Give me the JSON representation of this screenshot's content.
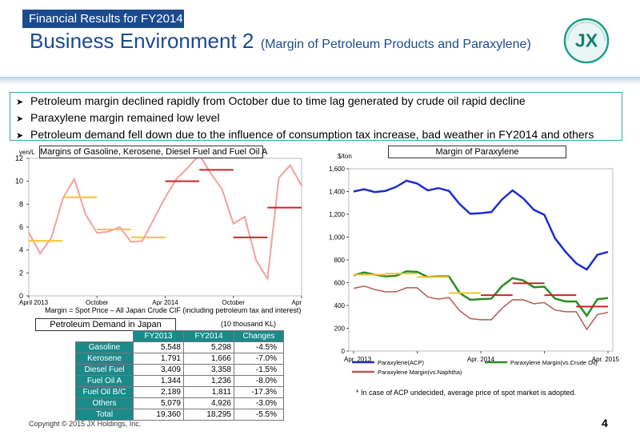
{
  "header": {
    "tag": "Financial Results for FY2014",
    "title": "Business Environment 2",
    "subtitle": "(Margin of Petroleum Products and Paraxylene)",
    "logo_text": "JX"
  },
  "bullets": [
    "Petroleum margin declined rapidly from October due to time lag generated by crude oil rapid decline",
    "Paraxylene margin remained low level",
    "Petroleum demand fell down due to the influence of consumption tax increase, bad weather in FY2014 and others"
  ],
  "colors": {
    "navy": "#1b4b8f",
    "teal": "#1a8a8a",
    "pink": "#f2a0a0",
    "yellow": "#f7c42a",
    "red": "#d2202a",
    "blue": "#1d2ec8",
    "green": "#2e8b22",
    "brown": "#b25b52"
  },
  "chart_data": [
    {
      "type": "line",
      "title": "Margins of Gasoline, Kerosene, Diesel Fuel and Fuel Oil A",
      "ylabel": "yen/L",
      "ylim": [
        0,
        12
      ],
      "yticks": [
        "0",
        "2",
        "4",
        "6",
        "8",
        "10",
        "12"
      ],
      "xticks": [
        {
          "label": "April 2013",
          "month": 0
        },
        {
          "label": "October",
          "month": 6
        },
        {
          "label": "Apr 2014",
          "month": 12
        },
        {
          "label": "October",
          "month": 18
        },
        {
          "label": "Apr",
          "month": 24
        }
      ],
      "series": [
        {
          "values": [
            5.5,
            3.7,
            5.1,
            8.5,
            10.2,
            7.1,
            5.5,
            5.6,
            6.0,
            4.7,
            4.8,
            6.7,
            8.6,
            10.2,
            11.2,
            12.3,
            10.7,
            9.3,
            6.3,
            6.9,
            3.1,
            1.5,
            10.3,
            11.4,
            9.6
          ]
        },
        {
          "segments": [
            {
              "start": 0,
              "end": 3,
              "value": 4.8
            },
            {
              "start": 3,
              "end": 6,
              "value": 8.6
            },
            {
              "start": 6,
              "end": 9,
              "value": 5.8
            },
            {
              "start": 9,
              "end": 12,
              "value": 5.1
            }
          ]
        },
        {
          "segments": [
            {
              "start": 12,
              "end": 15,
              "value": 10.0
            },
            {
              "start": 15,
              "end": 18,
              "value": 11.0
            },
            {
              "start": 18,
              "end": 21,
              "value": 5.1
            },
            {
              "start": 21,
              "end": 24,
              "value": 7.7
            }
          ]
        }
      ]
    },
    {
      "type": "line",
      "title": "Margin of Paraxylene",
      "ylabel": "$/ton",
      "ylim": [
        0,
        1600
      ],
      "yticks": [
        "0",
        "200",
        "400",
        "600",
        "800",
        "1,000",
        "1,200",
        "1,400",
        "1,600"
      ],
      "xticks": [
        {
          "label": "Apr. 2013",
          "month": 0
        },
        {
          "label": "Apr. 2014",
          "month": 12
        },
        {
          "label": "Apr. 2015",
          "month": 24
        }
      ],
      "series": [
        {
          "name": "Paraxylene(ACP)",
          "values": [
            1400,
            1420,
            1395,
            1405,
            1440,
            1495,
            1470,
            1410,
            1430,
            1405,
            1290,
            1205,
            1210,
            1220,
            1330,
            1410,
            1340,
            1240,
            1195,
            990,
            870,
            770,
            715,
            845,
            870
          ]
        },
        {
          "name": "Paraxylene Margin(vs.Crude Oil)",
          "values": [
            665,
            690,
            670,
            655,
            660,
            700,
            695,
            650,
            655,
            655,
            510,
            450,
            455,
            460,
            570,
            640,
            620,
            560,
            565,
            460,
            435,
            435,
            310,
            455,
            465
          ]
        },
        {
          "name": "Paraxylene Margin(vs.Naphtha)",
          "values": [
            550,
            570,
            540,
            520,
            520,
            555,
            555,
            475,
            455,
            470,
            355,
            285,
            275,
            275,
            375,
            450,
            450,
            415,
            425,
            360,
            345,
            345,
            190,
            320,
            340
          ]
        },
        {
          "segments": [
            {
              "start": 0,
              "end": 3,
              "value": 670
            },
            {
              "start": 3,
              "end": 6,
              "value": 680
            },
            {
              "start": 6,
              "end": 9,
              "value": 650
            },
            {
              "start": 9,
              "end": 12,
              "value": 510
            }
          ]
        },
        {
          "segments": [
            {
              "start": 12,
              "end": 15,
              "value": 490
            },
            {
              "start": 15,
              "end": 18,
              "value": 595
            },
            {
              "start": 18,
              "end": 21,
              "value": 490
            },
            {
              "start": 21,
              "end": 24,
              "value": 390
            }
          ]
        }
      ]
    }
  ],
  "margin_note": "Margin = Spot Price – All Japan Crude CIF (including petroleum tax and interest)",
  "demand": {
    "title": "Petroleum Demand in Japan",
    "unit": "(10 thousand KL)",
    "columns": [
      "FY2013",
      "FY2014",
      "Changes"
    ],
    "rows": [
      {
        "label": "Gasoline",
        "fy2013": "5,548",
        "fy2014": "5,298",
        "change": "-4.5%"
      },
      {
        "label": "Kerosene",
        "fy2013": "1,791",
        "fy2014": "1,666",
        "change": "-7.0%"
      },
      {
        "label": "Diesel Fuel",
        "fy2013": "3,409",
        "fy2014": "3,358",
        "change": "-1.5%"
      },
      {
        "label": "Fuel Oil A",
        "fy2013": "1,344",
        "fy2014": "1,236",
        "change": "-8.0%"
      },
      {
        "label": "Fuel Oil B/C",
        "fy2013": "2,189",
        "fy2014": "1,811",
        "change": "-17.3%"
      },
      {
        "label": "Others",
        "fy2013": "5,079",
        "fy2014": "4,926",
        "change": "-3.0%"
      },
      {
        "label": "Total",
        "fy2013": "19,360",
        "fy2014": "18,295",
        "change": "-5.5%"
      }
    ]
  },
  "acp_note": "* In case of ACP undecided, average price of spot market is adopted.",
  "footer": {
    "copyright": "Copyright © 2015 JX Holdings, Inc.",
    "page": "4"
  }
}
